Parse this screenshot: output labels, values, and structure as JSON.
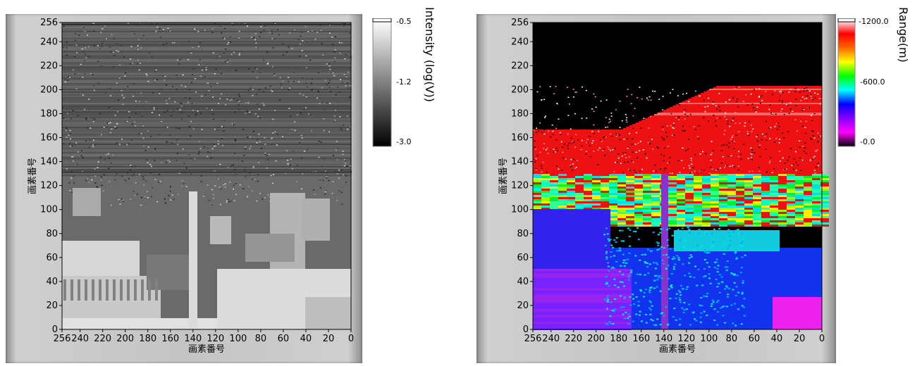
{
  "chart_data": [
    {
      "type": "heatmap",
      "xlabel": "画素番号",
      "ylabel": "画素番号",
      "x_ticks": [
        "256",
        "240",
        "220",
        "200",
        "180",
        "160",
        "140",
        "120",
        "100",
        "80",
        "60",
        "40",
        "20",
        "0"
      ],
      "y_ticks": [
        "256",
        "240",
        "220",
        "200",
        "180",
        "160",
        "140",
        "120",
        "100",
        "80",
        "60",
        "40",
        "20",
        "0"
      ],
      "xlim": [
        256,
        0
      ],
      "ylim": [
        0,
        256
      ],
      "colorbar": {
        "title": "Intensity (log(V))",
        "ticks": [
          "-0.5",
          "-1.2",
          "-3.0"
        ],
        "range": [
          -3.0,
          -0.5
        ],
        "colormap": "grayscale",
        "low_color": "#000000",
        "high_color": "#ffffff"
      }
    },
    {
      "type": "heatmap",
      "xlabel": "画素番号",
      "ylabel": "画素番号",
      "x_ticks": [
        "256",
        "240",
        "220",
        "200",
        "180",
        "160",
        "140",
        "120",
        "100",
        "80",
        "60",
        "40",
        "20",
        "0"
      ],
      "y_ticks": [
        "256",
        "240",
        "220",
        "200",
        "180",
        "160",
        "140",
        "120",
        "100",
        "80",
        "60",
        "40",
        "20",
        "0"
      ],
      "xlim": [
        256,
        0
      ],
      "ylim": [
        0,
        256
      ],
      "colorbar": {
        "title": "Range(m)",
        "ticks": [
          "-1200.0",
          "-600.0",
          "-0.0"
        ],
        "range": [
          0,
          1200
        ],
        "colormap": "rainbow",
        "stops": [
          "#ffffff",
          "#ff0000",
          "#ff6600",
          "#ffff00",
          "#00ff00",
          "#00ffff",
          "#0000ff",
          "#8800ff",
          "#ff00ff",
          "#000000"
        ]
      }
    }
  ]
}
